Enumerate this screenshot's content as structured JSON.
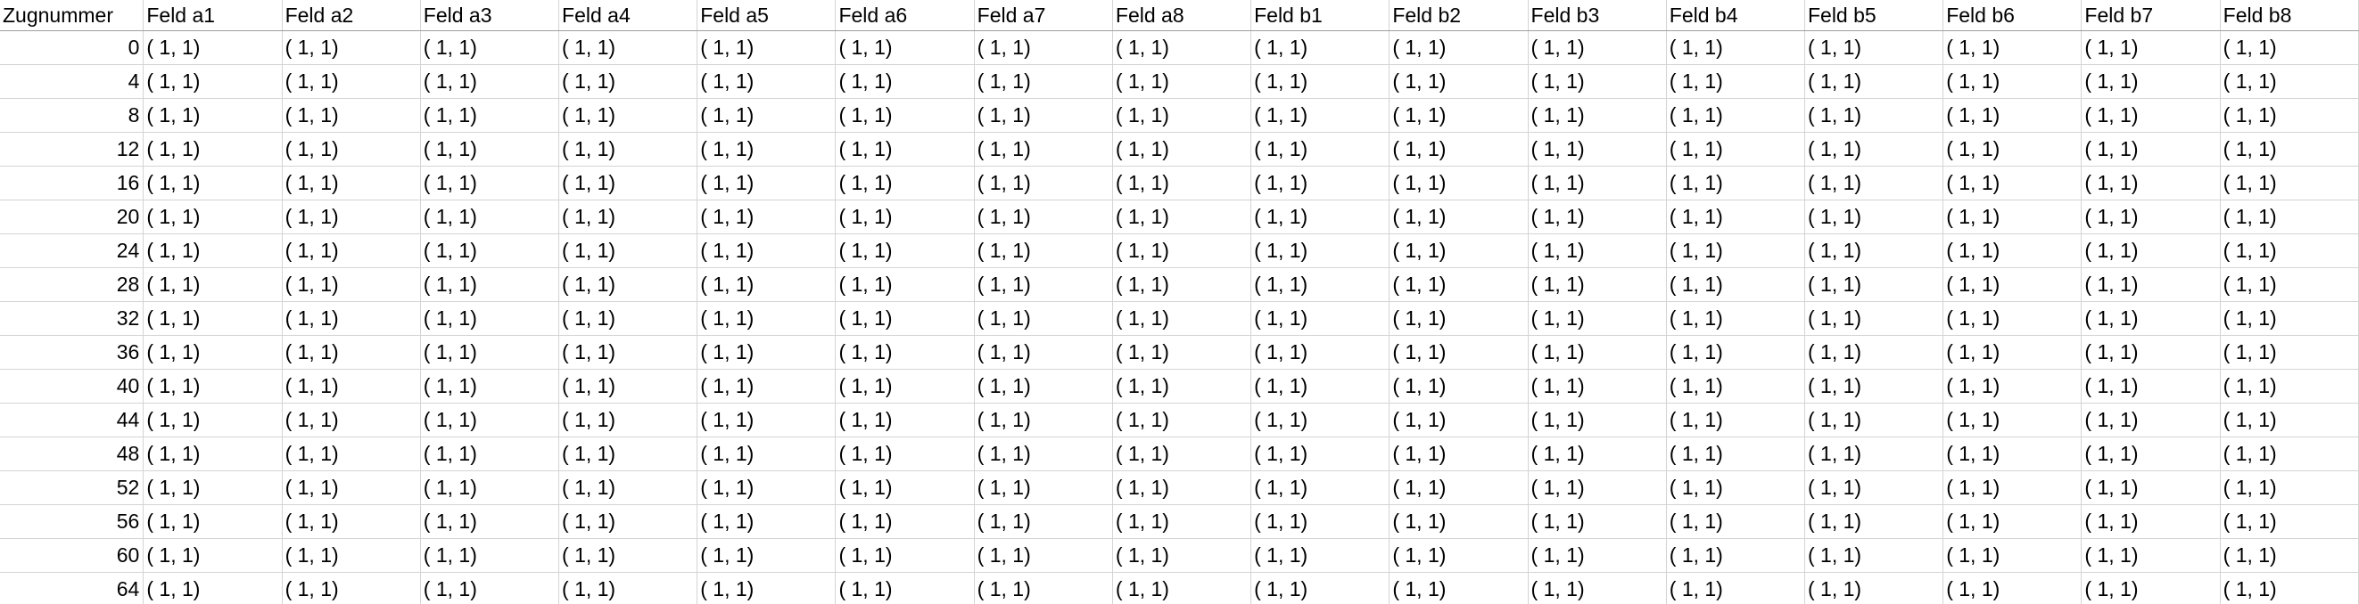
{
  "sheet": {
    "index_header": "Zugnummer",
    "columns": [
      "Feld a1",
      "Feld a2",
      "Feld a3",
      "Feld a4",
      "Feld a5",
      "Feld a6",
      "Feld a7",
      "Feld a8",
      "Feld b1",
      "Feld b2",
      "Feld b3",
      "Feld b4",
      "Feld b5",
      "Feld b6",
      "Feld b7",
      "Feld b8"
    ],
    "rows": [
      {
        "index": "0",
        "cells": [
          "( 1, 1)",
          "( 1, 1)",
          "( 1, 1)",
          "( 1, 1)",
          "( 1, 1)",
          "( 1, 1)",
          "( 1, 1)",
          "( 1, 1)",
          "( 1, 1)",
          "( 1, 1)",
          "( 1, 1)",
          "( 1, 1)",
          "( 1, 1)",
          "( 1, 1)",
          "( 1, 1)",
          "( 1, 1)"
        ]
      },
      {
        "index": "4",
        "cells": [
          "( 1, 1)",
          "( 1, 1)",
          "( 1, 1)",
          "( 1, 1)",
          "( 1, 1)",
          "( 1, 1)",
          "( 1, 1)",
          "( 1, 1)",
          "( 1, 1)",
          "( 1, 1)",
          "( 1, 1)",
          "( 1, 1)",
          "( 1, 1)",
          "( 1, 1)",
          "( 1, 1)",
          "( 1, 1)"
        ]
      },
      {
        "index": "8",
        "cells": [
          "( 1, 1)",
          "( 1, 1)",
          "( 1, 1)",
          "( 1, 1)",
          "( 1, 1)",
          "( 1, 1)",
          "( 1, 1)",
          "( 1, 1)",
          "( 1, 1)",
          "( 1, 1)",
          "( 1, 1)",
          "( 1, 1)",
          "( 1, 1)",
          "( 1, 1)",
          "( 1, 1)",
          "( 1, 1)"
        ]
      },
      {
        "index": "12",
        "cells": [
          "( 1, 1)",
          "( 1, 1)",
          "( 1, 1)",
          "( 1, 1)",
          "( 1, 1)",
          "( 1, 1)",
          "( 1, 1)",
          "( 1, 1)",
          "( 1, 1)",
          "( 1, 1)",
          "( 1, 1)",
          "( 1, 1)",
          "( 1, 1)",
          "( 1, 1)",
          "( 1, 1)",
          "( 1, 1)"
        ]
      },
      {
        "index": "16",
        "cells": [
          "( 1, 1)",
          "( 1, 1)",
          "( 1, 1)",
          "( 1, 1)",
          "( 1, 1)",
          "( 1, 1)",
          "( 1, 1)",
          "( 1, 1)",
          "( 1, 1)",
          "( 1, 1)",
          "( 1, 1)",
          "( 1, 1)",
          "( 1, 1)",
          "( 1, 1)",
          "( 1, 1)",
          "( 1, 1)"
        ]
      },
      {
        "index": "20",
        "cells": [
          "( 1, 1)",
          "( 1, 1)",
          "( 1, 1)",
          "( 1, 1)",
          "( 1, 1)",
          "( 1, 1)",
          "( 1, 1)",
          "( 1, 1)",
          "( 1, 1)",
          "( 1, 1)",
          "( 1, 1)",
          "( 1, 1)",
          "( 1, 1)",
          "( 1, 1)",
          "( 1, 1)",
          "( 1, 1)"
        ]
      },
      {
        "index": "24",
        "cells": [
          "( 1, 1)",
          "( 1, 1)",
          "( 1, 1)",
          "( 1, 1)",
          "( 1, 1)",
          "( 1, 1)",
          "( 1, 1)",
          "( 1, 1)",
          "( 1, 1)",
          "( 1, 1)",
          "( 1, 1)",
          "( 1, 1)",
          "( 1, 1)",
          "( 1, 1)",
          "( 1, 1)",
          "( 1, 1)"
        ]
      },
      {
        "index": "28",
        "cells": [
          "( 1, 1)",
          "( 1, 1)",
          "( 1, 1)",
          "( 1, 1)",
          "( 1, 1)",
          "( 1, 1)",
          "( 1, 1)",
          "( 1, 1)",
          "( 1, 1)",
          "( 1, 1)",
          "( 1, 1)",
          "( 1, 1)",
          "( 1, 1)",
          "( 1, 1)",
          "( 1, 1)",
          "( 1, 1)"
        ]
      },
      {
        "index": "32",
        "cells": [
          "( 1, 1)",
          "( 1, 1)",
          "( 1, 1)",
          "( 1, 1)",
          "( 1, 1)",
          "( 1, 1)",
          "( 1, 1)",
          "( 1, 1)",
          "( 1, 1)",
          "( 1, 1)",
          "( 1, 1)",
          "( 1, 1)",
          "( 1, 1)",
          "( 1, 1)",
          "( 1, 1)",
          "( 1, 1)"
        ]
      },
      {
        "index": "36",
        "cells": [
          "( 1, 1)",
          "( 1, 1)",
          "( 1, 1)",
          "( 1, 1)",
          "( 1, 1)",
          "( 1, 1)",
          "( 1, 1)",
          "( 1, 1)",
          "( 1, 1)",
          "( 1, 1)",
          "( 1, 1)",
          "( 1, 1)",
          "( 1, 1)",
          "( 1, 1)",
          "( 1, 1)",
          "( 1, 1)"
        ]
      },
      {
        "index": "40",
        "cells": [
          "( 1, 1)",
          "( 1, 1)",
          "( 1, 1)",
          "( 1, 1)",
          "( 1, 1)",
          "( 1, 1)",
          "( 1, 1)",
          "( 1, 1)",
          "( 1, 1)",
          "( 1, 1)",
          "( 1, 1)",
          "( 1, 1)",
          "( 1, 1)",
          "( 1, 1)",
          "( 1, 1)",
          "( 1, 1)"
        ]
      },
      {
        "index": "44",
        "cells": [
          "( 1, 1)",
          "( 1, 1)",
          "( 1, 1)",
          "( 1, 1)",
          "( 1, 1)",
          "( 1, 1)",
          "( 1, 1)",
          "( 1, 1)",
          "( 1, 1)",
          "( 1, 1)",
          "( 1, 1)",
          "( 1, 1)",
          "( 1, 1)",
          "( 1, 1)",
          "( 1, 1)",
          "( 1, 1)"
        ]
      },
      {
        "index": "48",
        "cells": [
          "( 1, 1)",
          "( 1, 1)",
          "( 1, 1)",
          "( 1, 1)",
          "( 1, 1)",
          "( 1, 1)",
          "( 1, 1)",
          "( 1, 1)",
          "( 1, 1)",
          "( 1, 1)",
          "( 1, 1)",
          "( 1, 1)",
          "( 1, 1)",
          "( 1, 1)",
          "( 1, 1)",
          "( 1, 1)"
        ]
      },
      {
        "index": "52",
        "cells": [
          "( 1, 1)",
          "( 1, 1)",
          "( 1, 1)",
          "( 1, 1)",
          "( 1, 1)",
          "( 1, 1)",
          "( 1, 1)",
          "( 1, 1)",
          "( 1, 1)",
          "( 1, 1)",
          "( 1, 1)",
          "( 1, 1)",
          "( 1, 1)",
          "( 1, 1)",
          "( 1, 1)",
          "( 1, 1)"
        ]
      },
      {
        "index": "56",
        "cells": [
          "( 1, 1)",
          "( 1, 1)",
          "( 1, 1)",
          "( 1, 1)",
          "( 1, 1)",
          "( 1, 1)",
          "( 1, 1)",
          "( 1, 1)",
          "( 1, 1)",
          "( 1, 1)",
          "( 1, 1)",
          "( 1, 1)",
          "( 1, 1)",
          "( 1, 1)",
          "( 1, 1)",
          "( 1, 1)"
        ]
      },
      {
        "index": "60",
        "cells": [
          "( 1, 1)",
          "( 1, 1)",
          "( 1, 1)",
          "( 1, 1)",
          "( 1, 1)",
          "( 1, 1)",
          "( 1, 1)",
          "( 1, 1)",
          "( 1, 1)",
          "( 1, 1)",
          "( 1, 1)",
          "( 1, 1)",
          "( 1, 1)",
          "( 1, 1)",
          "( 1, 1)",
          "( 1, 1)"
        ]
      },
      {
        "index": "64",
        "cells": [
          "( 1, 1)",
          "( 1, 1)",
          "( 1, 1)",
          "( 1, 1)",
          "( 1, 1)",
          "( 1, 1)",
          "( 1, 1)",
          "( 1, 1)",
          "( 1, 1)",
          "( 1, 1)",
          "( 1, 1)",
          "( 1, 1)",
          "( 1, 1)",
          "( 1, 1)",
          "( 1, 1)",
          "( 1, 1)"
        ]
      }
    ]
  }
}
